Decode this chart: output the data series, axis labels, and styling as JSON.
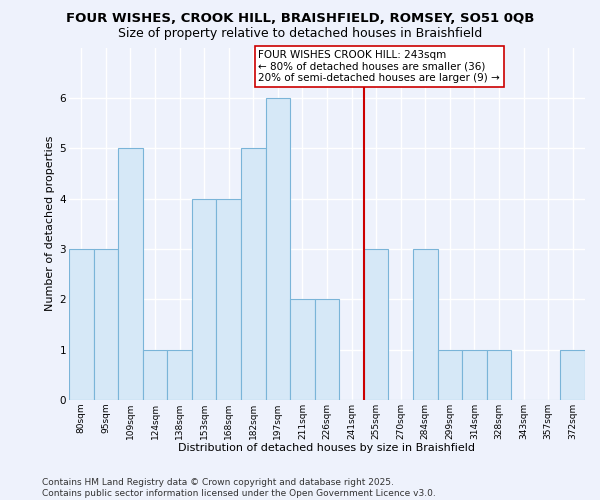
{
  "title1": "FOUR WISHES, CROOK HILL, BRAISHFIELD, ROMSEY, SO51 0QB",
  "title2": "Size of property relative to detached houses in Braishfield",
  "xlabel": "Distribution of detached houses by size in Braishfield",
  "ylabel": "Number of detached properties",
  "categories": [
    "80sqm",
    "95sqm",
    "109sqm",
    "124sqm",
    "138sqm",
    "153sqm",
    "168sqm",
    "182sqm",
    "197sqm",
    "211sqm",
    "226sqm",
    "241sqm",
    "255sqm",
    "270sqm",
    "284sqm",
    "299sqm",
    "314sqm",
    "328sqm",
    "343sqm",
    "357sqm",
    "372sqm"
  ],
  "values": [
    3,
    3,
    5,
    1,
    1,
    4,
    4,
    5,
    6,
    2,
    2,
    0,
    3,
    0,
    3,
    1,
    1,
    1,
    0,
    0,
    1
  ],
  "bar_color": "#d6e8f7",
  "bar_edge_color": "#7ab4d8",
  "vline_x_index": 11,
  "vline_color": "#cc0000",
  "annotation_text": "FOUR WISHES CROOK HILL: 243sqm\n← 80% of detached houses are smaller (36)\n20% of semi-detached houses are larger (9) →",
  "annotation_box_color": "#ffffff",
  "annotation_box_edge_color": "#cc0000",
  "ylim": [
    0,
    7
  ],
  "yticks": [
    0,
    1,
    2,
    3,
    4,
    5,
    6
  ],
  "footer": "Contains HM Land Registry data © Crown copyright and database right 2025.\nContains public sector information licensed under the Open Government Licence v3.0.",
  "bg_color": "#eef2fc",
  "plot_bg_color": "#eef2fc",
  "grid_color": "#ffffff",
  "title_fontsize": 9.5,
  "subtitle_fontsize": 9,
  "tick_fontsize": 6.5,
  "label_fontsize": 8,
  "footer_fontsize": 6.5,
  "annot_fontsize": 7.5
}
